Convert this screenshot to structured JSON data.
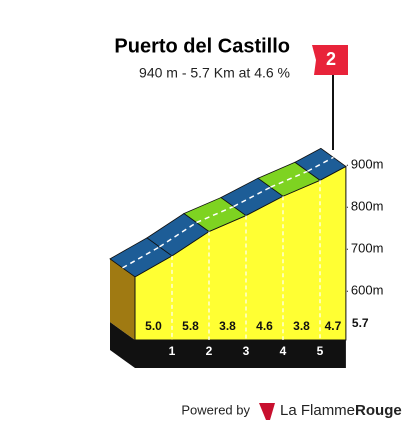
{
  "chart_data": {
    "type": "profile",
    "title": "Puerto del Castillo",
    "subtitle": "940 m - 5.7 Km at 4.6 %",
    "category": "2",
    "x": [
      0,
      1,
      2,
      3,
      4,
      5,
      5.7
    ],
    "elevation": [
      677,
      727,
      785,
      823,
      869,
      907,
      940
    ],
    "ylim": [
      560,
      960
    ],
    "yticks": [
      {
        "value": 600,
        "label": "600m"
      },
      {
        "value": 700,
        "label": "700m"
      },
      {
        "value": 800,
        "label": "800m"
      },
      {
        "value": 900,
        "label": "900m"
      }
    ],
    "segments": {
      "values": [
        5.0,
        5.8,
        3.8,
        4.6,
        3.8,
        4.7
      ],
      "value_labels": [
        "5.0",
        "5.8",
        "3.8",
        "4.6",
        "3.8",
        "4.7"
      ],
      "colors": [
        "#1d5d97",
        "#1d5d97",
        "#7ed321",
        "#1d5d97",
        "#7ed321",
        "#1d5d97"
      ]
    },
    "credit": "Powered by",
    "brand": [
      "La Flamme",
      "Rouge"
    ]
  }
}
